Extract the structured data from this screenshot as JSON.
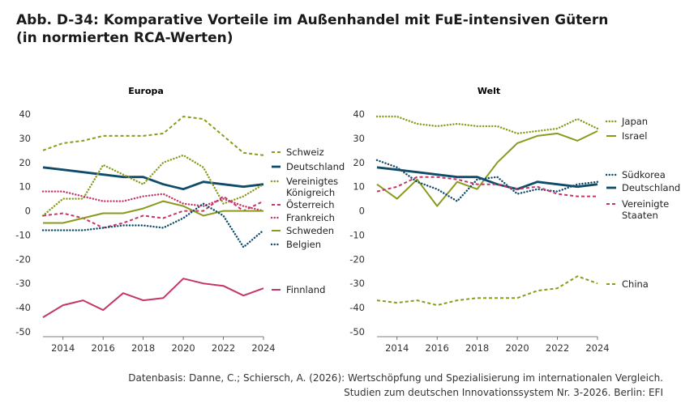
{
  "title": {
    "line1": "Abb. D-34: Komparative Vorteile im Außenhandel mit FuE-intensiven Gütern",
    "line2": "(in normierten RCA-Werten)"
  },
  "source": {
    "line1": "Datenbasis: Danne, C.; Schiersch, A. (2026): Wertschöpfung und Spezialisierung im internationalen Vergleich.",
    "line2": "Studien zum deutschen Innovationssystem Nr. 3-2026. Berlin: EFI"
  },
  "chart_data": [
    {
      "type": "line",
      "title": "Europa",
      "x": [
        2013,
        2014,
        2015,
        2016,
        2017,
        2018,
        2019,
        2020,
        2021,
        2022,
        2023,
        2024
      ],
      "xticks": [
        "2014",
        "2016",
        "2018",
        "2020",
        "2022",
        "2024"
      ],
      "yticks": [
        "40",
        "30",
        "20",
        "10",
        "0",
        "-10",
        "-20",
        "-30",
        "-40",
        "-50"
      ],
      "ylim": [
        -50,
        40
      ],
      "xlim": [
        2013,
        2024
      ],
      "grid": false,
      "legend_position": "right",
      "series": [
        {
          "name": "Schweiz",
          "color": "#8a9a1b",
          "style": "dashed",
          "values": [
            25,
            28,
            29,
            31,
            31,
            31,
            32,
            39,
            38,
            31,
            24,
            23
          ]
        },
        {
          "name": "Deutschland",
          "color": "#0f4c6a",
          "style": "solid-thick",
          "values": [
            18,
            17,
            16,
            15,
            14,
            14,
            11,
            9,
            12,
            11,
            10,
            11
          ]
        },
        {
          "name": "Vereinigtes Königreich",
          "color": "#8a9a1b",
          "style": "dotted",
          "values": [
            -2,
            5,
            5,
            19,
            15,
            11,
            20,
            23,
            18,
            3,
            6,
            11
          ]
        },
        {
          "name": "Österreich",
          "color": "#c4366a",
          "style": "dashed",
          "values": [
            -2,
            -1,
            -3,
            -7,
            -5,
            -2,
            -3,
            0,
            0,
            6,
            0,
            4
          ]
        },
        {
          "name": "Frankreich",
          "color": "#c4366a",
          "style": "dotted",
          "values": [
            8,
            8,
            6,
            4,
            4,
            6,
            7,
            3,
            2,
            5,
            2,
            0
          ]
        },
        {
          "name": "Schweden",
          "color": "#8a9a1b",
          "style": "solid",
          "values": [
            -5,
            -5,
            -3,
            -1,
            -1,
            1,
            4,
            2,
            -2,
            0,
            0,
            0
          ]
        },
        {
          "name": "Belgien",
          "color": "#0f4c6a",
          "style": "dotted",
          "values": [
            -8,
            -8,
            -8,
            -7,
            -6,
            -6,
            -7,
            -3,
            3,
            -2,
            -15,
            -8
          ]
        },
        {
          "name": "Finnland",
          "color": "#c4366a",
          "style": "solid",
          "values": [
            -44,
            -39,
            -37,
            -41,
            -34,
            -37,
            -36,
            -28,
            -30,
            -31,
            -35,
            -32
          ]
        }
      ],
      "legend": [
        {
          "name": "Schweiz",
          "label_lines": [
            "Schweiz"
          ]
        },
        {
          "name": "Deutschland",
          "label_lines": [
            "Deutschland"
          ]
        },
        {
          "name": "Vereinigtes Königreich",
          "label_lines": [
            "Vereinigtes",
            "Königreich"
          ]
        },
        {
          "name": "Österreich",
          "label_lines": [
            "Österreich"
          ]
        },
        {
          "name": "Frankreich",
          "label_lines": [
            "Frankreich"
          ]
        },
        {
          "name": "Schweden",
          "label_lines": [
            "Schweden"
          ]
        },
        {
          "name": "Belgien",
          "label_lines": [
            "Belgien"
          ]
        },
        {
          "name": "Finnland",
          "label_lines": [
            "Finnland"
          ]
        }
      ]
    },
    {
      "type": "line",
      "title": "Welt",
      "x": [
        2013,
        2014,
        2015,
        2016,
        2017,
        2018,
        2019,
        2020,
        2021,
        2022,
        2023,
        2024
      ],
      "xticks": [
        "2014",
        "2016",
        "2018",
        "2020",
        "2022",
        "2024"
      ],
      "yticks": [
        "40",
        "30",
        "20",
        "10",
        "0",
        "-10",
        "-20",
        "-30",
        "-40",
        "-50"
      ],
      "ylim": [
        -50,
        40
      ],
      "xlim": [
        2013,
        2024
      ],
      "grid": false,
      "legend_position": "right",
      "series": [
        {
          "name": "Japan",
          "color": "#8a9a1b",
          "style": "dotted",
          "values": [
            39,
            39,
            36,
            35,
            36,
            35,
            35,
            32,
            33,
            34,
            38,
            34
          ]
        },
        {
          "name": "Israel",
          "color": "#8a9a1b",
          "style": "solid",
          "values": [
            11,
            5,
            13,
            2,
            12,
            9,
            20,
            28,
            31,
            32,
            29,
            33
          ]
        },
        {
          "name": "Südkorea",
          "color": "#0f4c6a",
          "style": "dotted",
          "values": [
            21,
            18,
            12,
            9,
            4,
            13,
            14,
            7,
            9,
            8,
            11,
            12
          ]
        },
        {
          "name": "Deutschland",
          "color": "#0f4c6a",
          "style": "solid-thick",
          "values": [
            18,
            17,
            16,
            15,
            14,
            14,
            11,
            9,
            12,
            11,
            10,
            11
          ]
        },
        {
          "name": "Vereinigte Staaten",
          "color": "#c4366a",
          "style": "dashed",
          "values": [
            8,
            10,
            14,
            14,
            13,
            11,
            11,
            9,
            10,
            7,
            6,
            6
          ]
        },
        {
          "name": "China",
          "color": "#8a9a1b",
          "style": "dashed",
          "values": [
            -37,
            -38,
            -37,
            -39,
            -37,
            -36,
            -36,
            -36,
            -33,
            -32,
            -27,
            -30
          ]
        }
      ],
      "legend": [
        {
          "name": "Japan",
          "label_lines": [
            "Japan"
          ]
        },
        {
          "name": "Israel",
          "label_lines": [
            "Israel"
          ]
        },
        {
          "name": "Südkorea",
          "label_lines": [
            "Südkorea"
          ]
        },
        {
          "name": "Deutschland",
          "label_lines": [
            "Deutschland"
          ]
        },
        {
          "name": "Vereinigte Staaten",
          "label_lines": [
            "Vereinigte",
            "Staaten"
          ]
        },
        {
          "name": "China",
          "label_lines": [
            "China"
          ]
        }
      ]
    }
  ]
}
